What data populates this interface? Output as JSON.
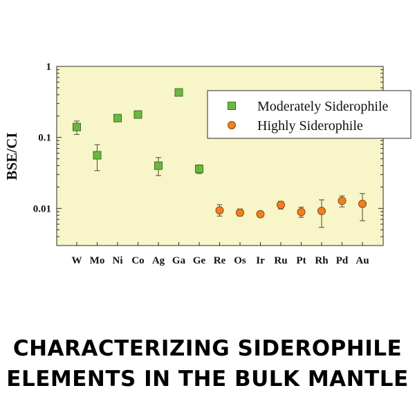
{
  "chart_data": {
    "type": "scatter",
    "title": "",
    "xlabel": "",
    "ylabel": "BSE/CI",
    "yscale": "log",
    "ylim": [
      0.003,
      1
    ],
    "yticks": [
      {
        "value": 1,
        "label": "1"
      },
      {
        "value": 0.1,
        "label": "0.1"
      },
      {
        "value": 0.01,
        "label": "0.01"
      }
    ],
    "categories": [
      "W",
      "Mo",
      "Ni",
      "Co",
      "Ag",
      "Ga",
      "Ge",
      "Re",
      "Os",
      "Ir",
      "Ru",
      "Pt",
      "Rh",
      "Pd",
      "Au"
    ],
    "legend_position": "top-right",
    "series": [
      {
        "name": "Moderately Siderophile",
        "marker": "square",
        "color": "#6ab83e",
        "points": [
          {
            "x": "W",
            "y": 0.14,
            "ylow": 0.11,
            "yhigh": 0.17
          },
          {
            "x": "Mo",
            "y": 0.056,
            "ylow": 0.034,
            "yhigh": 0.079
          },
          {
            "x": "Ni",
            "y": 0.187
          },
          {
            "x": "Co",
            "y": 0.21
          },
          {
            "x": "Ag",
            "y": 0.04,
            "ylow": 0.029,
            "yhigh": 0.052
          },
          {
            "x": "Ga",
            "y": 0.43
          },
          {
            "x": "Ge",
            "y": 0.036,
            "ylow": 0.031,
            "yhigh": 0.041
          }
        ]
      },
      {
        "name": "Highly Siderophile",
        "marker": "circle",
        "color": "#ef8020",
        "points": [
          {
            "x": "Re",
            "y": 0.0094,
            "ylow": 0.0078,
            "yhigh": 0.0113
          },
          {
            "x": "Os",
            "y": 0.0087,
            "ylow": 0.0078,
            "yhigh": 0.0098
          },
          {
            "x": "Ir",
            "y": 0.0083,
            "ylow": 0.0076,
            "yhigh": 0.0091
          },
          {
            "x": "Ru",
            "y": 0.0112,
            "ylow": 0.0098,
            "yhigh": 0.0126
          },
          {
            "x": "Pt",
            "y": 0.0089,
            "ylow": 0.0075,
            "yhigh": 0.0104
          },
          {
            "x": "Rh",
            "y": 0.0092,
            "ylow": 0.0054,
            "yhigh": 0.0132
          },
          {
            "x": "Pd",
            "y": 0.0128,
            "ylow": 0.0105,
            "yhigh": 0.015
          },
          {
            "x": "Au",
            "y": 0.0116,
            "ylow": 0.0067,
            "yhigh": 0.0162
          }
        ]
      }
    ]
  },
  "caption": {
    "line1": "CHARACTERIZING SIDEROPHILE",
    "line2": "ELEMENTS  IN THE BULK MANTLE"
  }
}
